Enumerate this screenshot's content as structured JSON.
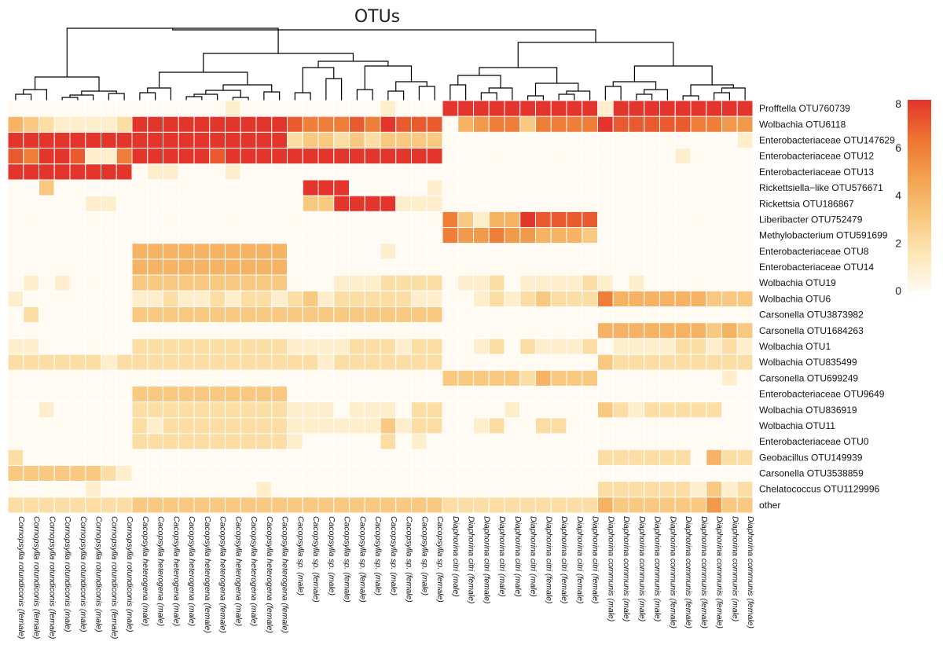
{
  "chart_data": {
    "type": "heatmap",
    "title": "OTUs",
    "colorbar": {
      "min": 0,
      "max": 8,
      "ticks": [
        "0",
        "2",
        "4",
        "6",
        "8"
      ],
      "colors": [
        "#fffaf2",
        "#fde6b3",
        "#f8c57a",
        "#f3a04e",
        "#ed7232",
        "#e3352b"
      ]
    },
    "rows": [
      "Profftella OTU760739",
      "Wolbachia OTU6118",
      "Enterobacteriaceae OTU147629",
      "Enterobacteriaceae OTU12",
      "Enterobacteriaceae OTU13",
      "Rickettsiella−like OTU576671",
      "Rickettsia OTU186867",
      "Liberibacter OTU752479",
      "Methylobacterium OTU591699",
      "Enterobacteriaceae OTU8",
      "Enterobacteriaceae OTU14",
      "Wolbachia OTU19",
      "Wolbachia OTU6",
      "Carsonella OTU3873982",
      "Carsonella OTU1684263",
      "Wolbachia OTU1",
      "Wolbachia OTU835499",
      "Carsonella OTU699249",
      "Enterobacteriaceae OTU9649",
      "Wolbachia OTU836919",
      "Wolbachia OTU11",
      "Enterobacteriaceae OTU0",
      "Geobacillus OTU149939",
      "Carsonella OTU3538859",
      "Chelatococcus OTU1129996",
      "other"
    ],
    "columns": [
      "Cornopsylla rotundiconis (female)",
      "Cornopsylla rotundiconis (female)",
      "Cornopsylla rotundiconis (female)",
      "Cornopsylla rotundiconis (male)",
      "Cornopsylla rotundiconis (male)",
      "Cornopsylla rotundiconis (male)",
      "Cornopsylla rotundiconis (female)",
      "Cornopsylla rotundiconis (male)",
      "Cacopsylla heterogena (male)",
      "Cacopsylla heterogena (male)",
      "Cacopsylla heterogena (male)",
      "Cacopsylla heterogena (male)",
      "Cacopsylla heterogena (female)",
      "Cacopsylla heterogena (female)",
      "Cacopsylla heterogena (male)",
      "Cacopsylla heterogena (male)",
      "Cacopsylla heterogena (female)",
      "Cacopsylla heterogena (female)",
      "Cacopsylla sp. (male)",
      "Cacopsylla sp. (female)",
      "Cacopsylla sp. (male)",
      "Cacopsylla sp. (female)",
      "Cacopsylla sp. (female)",
      "Cacopsylla sp. (male)",
      "Cacopsylla sp. (male)",
      "Cacopsylla sp. (female)",
      "Cacopsylla sp. (male)",
      "Cacopsylla sp. (female)",
      "Diaphorina citri (male)",
      "Diaphorina citri (female)",
      "Diaphorina citri (female)",
      "Diaphorina citri (male)",
      "Diaphorina citri (male)",
      "Diaphorina citri (male)",
      "Diaphorina citri (female)",
      "Diaphorina citri (female)",
      "Diaphorina citri (female)",
      "Diaphorina citri (female)",
      "Diaphorina communis (male)",
      "Diaphorina communis (male)",
      "Diaphorina communis (male)",
      "Diaphorina communis (male)",
      "Diaphorina communis (female)",
      "Diaphorina communis (female)",
      "Diaphorina communis (female)",
      "Diaphorina communis (female)",
      "Diaphorina communis (male)",
      "Diaphorina communis (female)"
    ],
    "values": [
      [
        0,
        0,
        0,
        0,
        0,
        0,
        0,
        0,
        0,
        0,
        0,
        0,
        0,
        0,
        1,
        0,
        0,
        0,
        0,
        0,
        0,
        0,
        0,
        0,
        1,
        0,
        0,
        0,
        8,
        8,
        8,
        8,
        8,
        8,
        8,
        8,
        8,
        8,
        1,
        8,
        8,
        8,
        8,
        8,
        8,
        8,
        8,
        8
      ],
      [
        4,
        3,
        2,
        1,
        1,
        1,
        1,
        2,
        8,
        8,
        8,
        8,
        8,
        8,
        8,
        8,
        8,
        8,
        7,
        6,
        6,
        6,
        7,
        6,
        8,
        7,
        7,
        7,
        0,
        4,
        5,
        6,
        6,
        3,
        6,
        6,
        6,
        6,
        8,
        7,
        7,
        7,
        7,
        7,
        6,
        6,
        5,
        5
      ],
      [
        8,
        8,
        8,
        8,
        8,
        8,
        8,
        8,
        8,
        8,
        8,
        8,
        8,
        8,
        8,
        8,
        8,
        8,
        2,
        3,
        3,
        2,
        3,
        2,
        3,
        3,
        3,
        3,
        0,
        0,
        0,
        0,
        0,
        0,
        0,
        0,
        0,
        0,
        0,
        0,
        0,
        0,
        0,
        0,
        0,
        0,
        0,
        1
      ],
      [
        7,
        6,
        8,
        8,
        7,
        1,
        1,
        6,
        8,
        8,
        8,
        8,
        8,
        7,
        8,
        8,
        8,
        8,
        8,
        8,
        8,
        8,
        8,
        8,
        8,
        8,
        8,
        8,
        0,
        0,
        0,
        0,
        0,
        0,
        0,
        0,
        0,
        0,
        0,
        0,
        0,
        0,
        0,
        1,
        0,
        0,
        0,
        0
      ],
      [
        8,
        8,
        8,
        8,
        8,
        8,
        8,
        8,
        0,
        1,
        1,
        0,
        0,
        0,
        1,
        0,
        0,
        0,
        0,
        0,
        0,
        0,
        0,
        0,
        0,
        0,
        0,
        0,
        0,
        0,
        0,
        0,
        0,
        0,
        0,
        0,
        0,
        0,
        0,
        0,
        0,
        0,
        0,
        0,
        0,
        0,
        0,
        0
      ],
      [
        0,
        0,
        3,
        0,
        0,
        0,
        0,
        0,
        0,
        0,
        0,
        0,
        0,
        0,
        0,
        0,
        0,
        0,
        0,
        8,
        8,
        8,
        0,
        0,
        0,
        0,
        0,
        1,
        0,
        0,
        0,
        0,
        0,
        0,
        0,
        0,
        0,
        0,
        0,
        0,
        0,
        0,
        0,
        0,
        0,
        0,
        0,
        0
      ],
      [
        0,
        0,
        0,
        0,
        0,
        1,
        1,
        0,
        0,
        0,
        0,
        0,
        0,
        0,
        0,
        0,
        0,
        0,
        0,
        3,
        3,
        8,
        8,
        8,
        8,
        1,
        1,
        1,
        0,
        0,
        0,
        0,
        0,
        0,
        0,
        0,
        0,
        0,
        0,
        0,
        0,
        0,
        0,
        0,
        0,
        0,
        0,
        0
      ],
      [
        0,
        0,
        0,
        0,
        0,
        0,
        0,
        0,
        0,
        0,
        0,
        0,
        0,
        0,
        0,
        0,
        0,
        0,
        0,
        0,
        0,
        0,
        0,
        0,
        0,
        0,
        0,
        0,
        6,
        3,
        1,
        4,
        4,
        8,
        7,
        7,
        7,
        7,
        0,
        0,
        0,
        0,
        0,
        0,
        0,
        0,
        0,
        0
      ],
      [
        0,
        0,
        0,
        0,
        0,
        0,
        0,
        0,
        0,
        0,
        0,
        0,
        0,
        0,
        0,
        0,
        0,
        0,
        0,
        0,
        0,
        0,
        0,
        0,
        0,
        0,
        0,
        0,
        6,
        5,
        5,
        6,
        5,
        5,
        4,
        4,
        4,
        3,
        0,
        0,
        0,
        0,
        0,
        0,
        0,
        0,
        0,
        0
      ],
      [
        0,
        0,
        0,
        0,
        0,
        0,
        0,
        0,
        4,
        4,
        4,
        4,
        4,
        4,
        4,
        4,
        4,
        4,
        0,
        0,
        0,
        0,
        0,
        0,
        1,
        0,
        0,
        0,
        0,
        0,
        0,
        0,
        0,
        0,
        0,
        0,
        0,
        0,
        0,
        0,
        0,
        0,
        0,
        0,
        0,
        0,
        0,
        0
      ],
      [
        0,
        0,
        0,
        0,
        0,
        0,
        0,
        0,
        4,
        4,
        4,
        4,
        4,
        4,
        4,
        4,
        4,
        4,
        0,
        0,
        0,
        0,
        0,
        0,
        0,
        0,
        0,
        0,
        0,
        0,
        0,
        0,
        0,
        0,
        0,
        0,
        0,
        0,
        0,
        0,
        0,
        0,
        0,
        0,
        0,
        0,
        0,
        0
      ],
      [
        0,
        1,
        0,
        1,
        0,
        0,
        0,
        0,
        3,
        3,
        3,
        3,
        3,
        3,
        3,
        3,
        3,
        3,
        0,
        0,
        0,
        1,
        1,
        1,
        2,
        2,
        2,
        2,
        0,
        1,
        1,
        2,
        0,
        1,
        1,
        1,
        1,
        2,
        1,
        0,
        1,
        0,
        0,
        0,
        0,
        0,
        0,
        0
      ],
      [
        1,
        0,
        0,
        0,
        0,
        0,
        0,
        0,
        1,
        1,
        2,
        1,
        1,
        2,
        1,
        2,
        2,
        1,
        2,
        3,
        1,
        2,
        2,
        2,
        2,
        2,
        1,
        1,
        0,
        0,
        1,
        2,
        1,
        2,
        3,
        2,
        2,
        2,
        6,
        4,
        4,
        4,
        4,
        4,
        4,
        3,
        3,
        3
      ],
      [
        0,
        2,
        0,
        0,
        0,
        0,
        0,
        0,
        3,
        3,
        3,
        3,
        3,
        3,
        3,
        3,
        3,
        3,
        3,
        3,
        3,
        3,
        3,
        3,
        3,
        3,
        3,
        3,
        0,
        0,
        0,
        0,
        0,
        0,
        0,
        0,
        0,
        0,
        0,
        0,
        0,
        0,
        0,
        0,
        0,
        0,
        0,
        0
      ],
      [
        0,
        0,
        0,
        0,
        0,
        0,
        0,
        0,
        0,
        0,
        0,
        0,
        0,
        0,
        0,
        0,
        0,
        0,
        0,
        0,
        0,
        0,
        0,
        0,
        0,
        0,
        0,
        0,
        0,
        0,
        0,
        0,
        0,
        0,
        0,
        0,
        0,
        0,
        4,
        4,
        4,
        4,
        4,
        4,
        4,
        3,
        4,
        3
      ],
      [
        1,
        1,
        0,
        0,
        0,
        0,
        0,
        0,
        2,
        2,
        2,
        2,
        2,
        2,
        2,
        2,
        2,
        2,
        1,
        1,
        1,
        1,
        2,
        2,
        2,
        1,
        2,
        2,
        0,
        0,
        1,
        2,
        0,
        2,
        1,
        1,
        1,
        2,
        0,
        1,
        1,
        1,
        1,
        2,
        2,
        1,
        2,
        1
      ],
      [
        2,
        2,
        2,
        2,
        2,
        2,
        1,
        2,
        2,
        2,
        2,
        2,
        2,
        2,
        2,
        2,
        2,
        2,
        2,
        2,
        1,
        2,
        2,
        2,
        2,
        2,
        2,
        2,
        0,
        0,
        0,
        0,
        0,
        0,
        0,
        0,
        0,
        0,
        3,
        2,
        2,
        2,
        2,
        2,
        2,
        2,
        2,
        2
      ],
      [
        0,
        0,
        0,
        0,
        0,
        0,
        0,
        0,
        0,
        0,
        0,
        0,
        0,
        0,
        0,
        0,
        0,
        0,
        0,
        0,
        0,
        0,
        0,
        0,
        0,
        0,
        0,
        0,
        3,
        3,
        3,
        3,
        3,
        2,
        4,
        3,
        3,
        3,
        0,
        0,
        0,
        0,
        0,
        0,
        0,
        0,
        1,
        0
      ],
      [
        0,
        0,
        0,
        0,
        0,
        0,
        0,
        0,
        3,
        3,
        3,
        3,
        3,
        3,
        3,
        3,
        3,
        3,
        0,
        0,
        0,
        0,
        0,
        0,
        0,
        0,
        0,
        0,
        0,
        0,
        0,
        0,
        0,
        0,
        0,
        0,
        0,
        0,
        0,
        0,
        0,
        0,
        0,
        0,
        0,
        0,
        0,
        0
      ],
      [
        0,
        0,
        1,
        0,
        0,
        0,
        0,
        0,
        2,
        2,
        2,
        2,
        2,
        2,
        2,
        2,
        2,
        2,
        1,
        1,
        1,
        0,
        1,
        1,
        1,
        0,
        2,
        2,
        0,
        0,
        0,
        0,
        1,
        0,
        0,
        0,
        0,
        0,
        3,
        2,
        1,
        2,
        2,
        2,
        2,
        2,
        0,
        0
      ],
      [
        0,
        0,
        0,
        0,
        0,
        0,
        0,
        0,
        2,
        1,
        2,
        2,
        2,
        2,
        2,
        2,
        2,
        2,
        1,
        1,
        1,
        1,
        1,
        1,
        3,
        1,
        2,
        2,
        0,
        0,
        1,
        2,
        0,
        0,
        2,
        2,
        0,
        0,
        0,
        0,
        0,
        0,
        0,
        0,
        0,
        0,
        0,
        0
      ],
      [
        0,
        0,
        0,
        0,
        0,
        0,
        0,
        0,
        2,
        2,
        2,
        2,
        2,
        2,
        2,
        2,
        2,
        2,
        1,
        0,
        0,
        0,
        0,
        0,
        2,
        0,
        1,
        0,
        0,
        0,
        0,
        0,
        0,
        0,
        0,
        0,
        0,
        0,
        0,
        0,
        0,
        0,
        0,
        0,
        0,
        0,
        0,
        0
      ],
      [
        2,
        0,
        0,
        0,
        0,
        0,
        0,
        0,
        0,
        0,
        0,
        0,
        0,
        0,
        0,
        0,
        0,
        0,
        0,
        0,
        0,
        0,
        0,
        0,
        0,
        0,
        0,
        0,
        0,
        0,
        0,
        0,
        0,
        0,
        0,
        0,
        0,
        0,
        2,
        2,
        2,
        2,
        2,
        2,
        0,
        4,
        2,
        2
      ],
      [
        3,
        3,
        3,
        3,
        3,
        3,
        2,
        1,
        0,
        0,
        0,
        0,
        0,
        0,
        0,
        0,
        0,
        0,
        0,
        0,
        0,
        0,
        0,
        0,
        0,
        0,
        0,
        0,
        0,
        0,
        0,
        0,
        0,
        0,
        0,
        0,
        0,
        0,
        0,
        0,
        0,
        0,
        0,
        0,
        0,
        0,
        0,
        0
      ],
      [
        0,
        0,
        0,
        0,
        0,
        1,
        0,
        0,
        0,
        0,
        0,
        0,
        0,
        0,
        0,
        0,
        1,
        0,
        0,
        0,
        0,
        0,
        0,
        0,
        0,
        0,
        0,
        0,
        0,
        0,
        0,
        0,
        0,
        0,
        0,
        0,
        0,
        0,
        2,
        2,
        2,
        2,
        2,
        2,
        1,
        3,
        1,
        2
      ],
      [
        2,
        2,
        2,
        2,
        2,
        2,
        2,
        2,
        3,
        3,
        3,
        3,
        3,
        3,
        3,
        3,
        3,
        3,
        3,
        3,
        3,
        3,
        3,
        3,
        3,
        3,
        3,
        3,
        2,
        2,
        2,
        2,
        2,
        2,
        2,
        2,
        2,
        2,
        4,
        3,
        3,
        3,
        3,
        3,
        3,
        5,
        3,
        3
      ]
    ]
  }
}
